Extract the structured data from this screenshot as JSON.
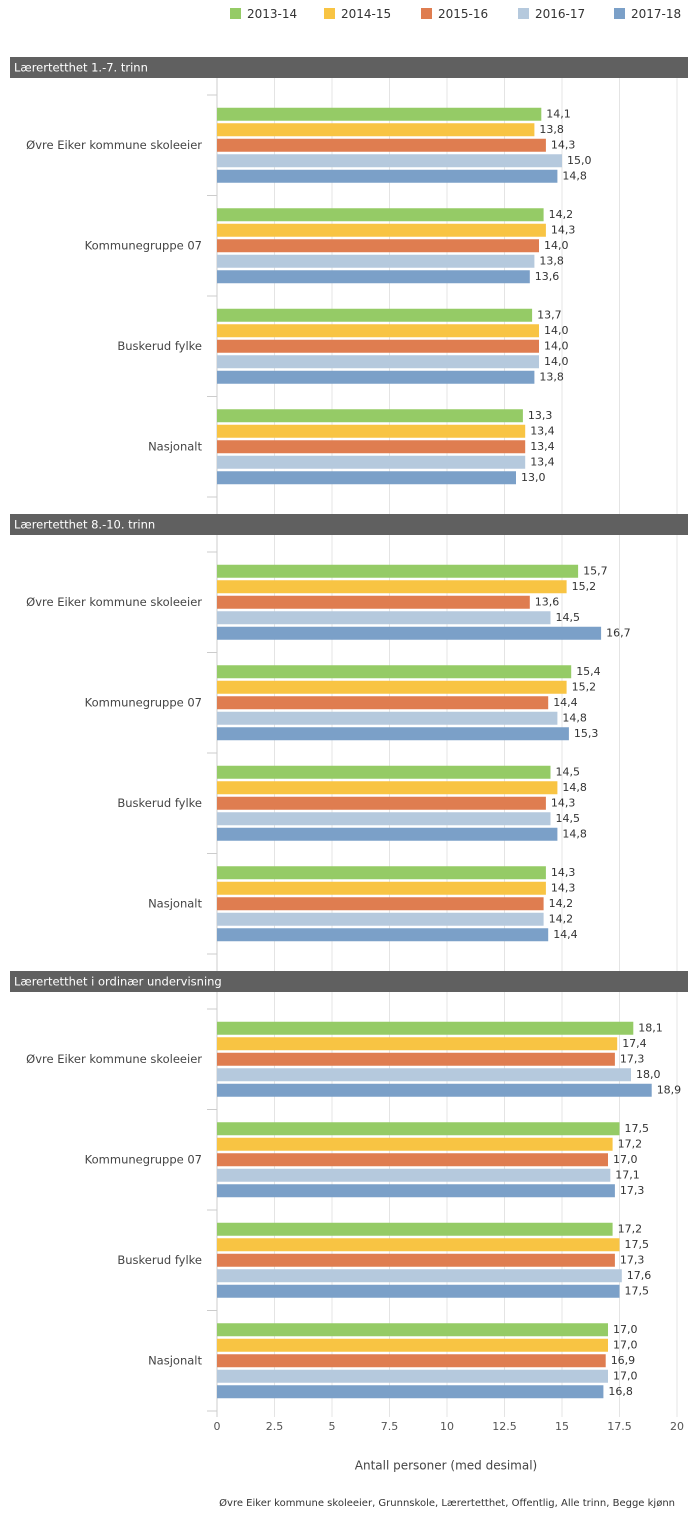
{
  "chart_data": [
    {
      "type": "bar",
      "orientation": "horizontal",
      "title": "Lærertetthet 1.-7. trinn",
      "categories": [
        "Øvre Eiker kommune skoleeier",
        "Kommunegruppe 07",
        "Buskerud fylke",
        "Nasjonalt"
      ],
      "series": [
        {
          "name": "2013-14",
          "color": "#95cb66",
          "values": [
            14.1,
            14.2,
            13.7,
            13.3
          ],
          "value_labels": [
            "14,1",
            "14,2",
            "13,7",
            "13,3"
          ]
        },
        {
          "name": "2014-15",
          "color": "#f8c443",
          "values": [
            13.8,
            14.3,
            14.0,
            13.4
          ],
          "value_labels": [
            "13,8",
            "14,3",
            "14,0",
            "13,4"
          ]
        },
        {
          "name": "2015-16",
          "color": "#df7d50",
          "values": [
            14.3,
            14.0,
            14.0,
            13.4
          ],
          "value_labels": [
            "14,3",
            "14,0",
            "14,0",
            "13,4"
          ]
        },
        {
          "name": "2016-17",
          "color": "#b5c9dd",
          "values": [
            15.0,
            13.8,
            14.0,
            13.4
          ],
          "value_labels": [
            "15,0",
            "13,8",
            "14,0",
            "13,4"
          ]
        },
        {
          "name": "2017-18",
          "color": "#7ba0c8",
          "values": [
            14.8,
            13.6,
            13.8,
            13.0
          ],
          "value_labels": [
            "14,8",
            "13,6",
            "13,8",
            "13,0"
          ]
        }
      ],
      "xlim": [
        0,
        20
      ],
      "xticks": [
        0,
        2.5,
        5,
        7.5,
        10,
        12.5,
        15,
        17.5,
        20
      ],
      "grid": true
    },
    {
      "type": "bar",
      "orientation": "horizontal",
      "title": "Lærertetthet 8.-10. trinn",
      "categories": [
        "Øvre Eiker kommune skoleeier",
        "Kommunegruppe 07",
        "Buskerud fylke",
        "Nasjonalt"
      ],
      "series": [
        {
          "name": "2013-14",
          "color": "#95cb66",
          "values": [
            15.7,
            15.4,
            14.5,
            14.3
          ],
          "value_labels": [
            "15,7",
            "15,4",
            "14,5",
            "14,3"
          ]
        },
        {
          "name": "2014-15",
          "color": "#f8c443",
          "values": [
            15.2,
            15.2,
            14.8,
            14.3
          ],
          "value_labels": [
            "15,2",
            "15,2",
            "14,8",
            "14,3"
          ]
        },
        {
          "name": "2015-16",
          "color": "#df7d50",
          "values": [
            13.6,
            14.4,
            14.3,
            14.2
          ],
          "value_labels": [
            "13,6",
            "14,4",
            "14,3",
            "14,2"
          ]
        },
        {
          "name": "2016-17",
          "color": "#b5c9dd",
          "values": [
            14.5,
            14.8,
            14.5,
            14.2
          ],
          "value_labels": [
            "14,5",
            "14,8",
            "14,5",
            "14,2"
          ]
        },
        {
          "name": "2017-18",
          "color": "#7ba0c8",
          "values": [
            16.7,
            15.3,
            14.8,
            14.4
          ],
          "value_labels": [
            "16,7",
            "15,3",
            "14,8",
            "14,4"
          ]
        }
      ],
      "xlim": [
        0,
        20
      ],
      "xticks": [
        0,
        2.5,
        5,
        7.5,
        10,
        12.5,
        15,
        17.5,
        20
      ],
      "grid": true
    },
    {
      "type": "bar",
      "orientation": "horizontal",
      "title": "Lærertetthet i ordinær undervisning",
      "categories": [
        "Øvre Eiker kommune skoleeier",
        "Kommunegruppe 07",
        "Buskerud fylke",
        "Nasjonalt"
      ],
      "series": [
        {
          "name": "2013-14",
          "color": "#95cb66",
          "values": [
            18.1,
            17.5,
            17.2,
            17.0
          ],
          "value_labels": [
            "18,1",
            "17,5",
            "17,2",
            "17,0"
          ]
        },
        {
          "name": "2014-15",
          "color": "#f8c443",
          "values": [
            17.4,
            17.2,
            17.5,
            17.0
          ],
          "value_labels": [
            "17,4",
            "17,2",
            "17,5",
            "17,0"
          ]
        },
        {
          "name": "2015-16",
          "color": "#df7d50",
          "values": [
            17.3,
            17.0,
            17.3,
            16.9
          ],
          "value_labels": [
            "17,3",
            "17,0",
            "17,3",
            "16,9"
          ]
        },
        {
          "name": "2016-17",
          "color": "#b5c9dd",
          "values": [
            18.0,
            17.1,
            17.6,
            17.0
          ],
          "value_labels": [
            "18,0",
            "17,1",
            "17,6",
            "17,0"
          ]
        },
        {
          "name": "2017-18",
          "color": "#7ba0c8",
          "values": [
            18.9,
            17.3,
            17.5,
            16.8
          ],
          "value_labels": [
            "18,9",
            "17,3",
            "17,5",
            "16,8"
          ]
        }
      ],
      "xlim": [
        0,
        20
      ],
      "xticks": [
        0,
        2.5,
        5,
        7.5,
        10,
        12.5,
        15,
        17.5,
        20
      ],
      "grid": true,
      "xlabel": "Antall personer (med desimal)"
    }
  ],
  "source": "Øvre Eiker kommune skoleeier, Grunnskole, Lærertetthet, Offentlig, Alle trinn, Begge kjønn"
}
